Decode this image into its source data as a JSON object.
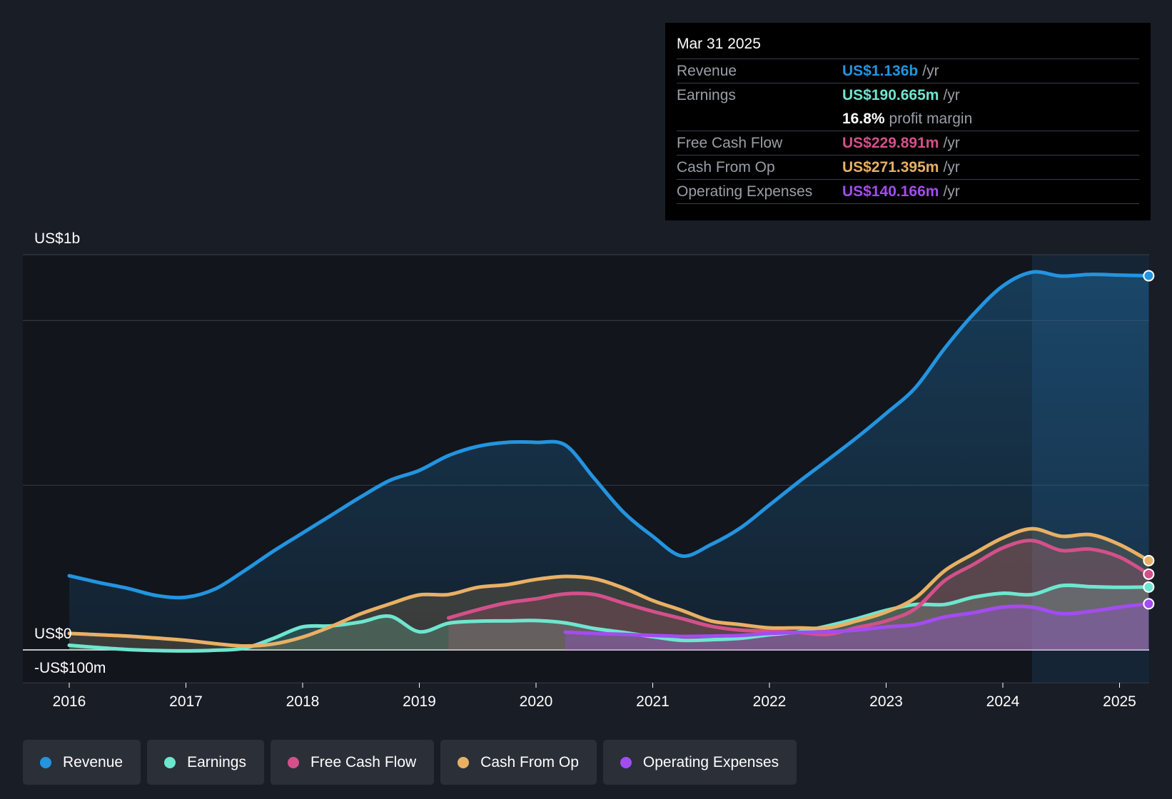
{
  "tooltip": {
    "date": "Mar 31 2025",
    "rows": {
      "revenue": {
        "label": "Revenue",
        "value": "US$1.136b",
        "unit": "/yr",
        "color": "#2394e0"
      },
      "earnings": {
        "label": "Earnings",
        "value": "US$190.665m",
        "unit": "/yr",
        "color": "#6ee6cf"
      },
      "margin": {
        "value": "16.8%",
        "unit": "profit margin"
      },
      "fcf": {
        "label": "Free Cash Flow",
        "value": "US$229.891m",
        "unit": "/yr",
        "color": "#d4508a"
      },
      "cfo": {
        "label": "Cash From Op",
        "value": "US$271.395m",
        "unit": "/yr",
        "color": "#e9b064"
      },
      "opex": {
        "label": "Operating Expenses",
        "value": "US$140.166m",
        "unit": "/yr",
        "color": "#a34cf0"
      }
    }
  },
  "legend": [
    {
      "label": "Revenue",
      "color": "#2394e0"
    },
    {
      "label": "Earnings",
      "color": "#6ee6cf"
    },
    {
      "label": "Free Cash Flow",
      "color": "#d4508a"
    },
    {
      "label": "Cash From Op",
      "color": "#e9b064"
    },
    {
      "label": "Operating Expenses",
      "color": "#a34cf0"
    }
  ],
  "chart_data": {
    "type": "area",
    "title": "",
    "xlabel": "",
    "ylabel": "",
    "ylim": [
      -100,
      1200
    ],
    "xlim": [
      2015.6,
      2025.25
    ],
    "y_tick_labels": [
      {
        "value": 1200,
        "label": "US$1b"
      },
      {
        "value": 0,
        "label": "US$0"
      },
      {
        "value": -100,
        "label": "-US$100m"
      }
    ],
    "gridlines": [
      1200,
      1000,
      500,
      0,
      -100
    ],
    "x_ticks": [
      2016,
      2017,
      2018,
      2019,
      2020,
      2021,
      2022,
      2023,
      2024,
      2025
    ],
    "x_tick_labels": [
      "2016",
      "2017",
      "2018",
      "2019",
      "2020",
      "2021",
      "2022",
      "2023",
      "2024",
      "2025"
    ],
    "highlight_from": 2024.25,
    "series": [
      {
        "name": "Revenue",
        "color": "#2394e0",
        "fill": true,
        "points": [
          [
            2016.0,
            225
          ],
          [
            2016.25,
            205
          ],
          [
            2016.5,
            187
          ],
          [
            2016.75,
            165
          ],
          [
            2017.0,
            160
          ],
          [
            2017.25,
            185
          ],
          [
            2017.5,
            240
          ],
          [
            2017.75,
            300
          ],
          [
            2018.0,
            355
          ],
          [
            2018.25,
            410
          ],
          [
            2018.5,
            465
          ],
          [
            2018.75,
            515
          ],
          [
            2019.0,
            545
          ],
          [
            2019.25,
            590
          ],
          [
            2019.5,
            618
          ],
          [
            2019.75,
            630
          ],
          [
            2020.0,
            630
          ],
          [
            2020.25,
            622
          ],
          [
            2020.5,
            520
          ],
          [
            2020.75,
            418
          ],
          [
            2021.0,
            345
          ],
          [
            2021.25,
            285
          ],
          [
            2021.5,
            320
          ],
          [
            2021.75,
            370
          ],
          [
            2022.0,
            440
          ],
          [
            2022.25,
            510
          ],
          [
            2022.5,
            577
          ],
          [
            2022.75,
            645
          ],
          [
            2023.0,
            718
          ],
          [
            2023.25,
            796
          ],
          [
            2023.5,
            915
          ],
          [
            2023.75,
            1020
          ],
          [
            2024.0,
            1105
          ],
          [
            2024.25,
            1147
          ],
          [
            2024.5,
            1135
          ],
          [
            2024.75,
            1140
          ],
          [
            2025.0,
            1138
          ],
          [
            2025.25,
            1136
          ]
        ]
      },
      {
        "name": "Earnings",
        "color": "#6ee6cf",
        "fill": true,
        "points": [
          [
            2016.0,
            14
          ],
          [
            2016.25,
            7
          ],
          [
            2016.5,
            1
          ],
          [
            2016.75,
            -2
          ],
          [
            2017.0,
            -3
          ],
          [
            2017.25,
            -1
          ],
          [
            2017.5,
            5
          ],
          [
            2017.75,
            35
          ],
          [
            2018.0,
            70
          ],
          [
            2018.25,
            73
          ],
          [
            2018.5,
            85
          ],
          [
            2018.75,
            102
          ],
          [
            2019.0,
            55
          ],
          [
            2019.25,
            81
          ],
          [
            2019.5,
            87
          ],
          [
            2019.75,
            88
          ],
          [
            2020.0,
            89
          ],
          [
            2020.25,
            82
          ],
          [
            2020.5,
            65
          ],
          [
            2020.75,
            53
          ],
          [
            2021.0,
            40
          ],
          [
            2021.25,
            29
          ],
          [
            2021.5,
            31
          ],
          [
            2021.75,
            35
          ],
          [
            2022.0,
            46
          ],
          [
            2022.25,
            55
          ],
          [
            2022.5,
            73
          ],
          [
            2022.75,
            95
          ],
          [
            2023.0,
            120
          ],
          [
            2023.25,
            138
          ],
          [
            2023.5,
            138
          ],
          [
            2023.75,
            160
          ],
          [
            2024.0,
            172
          ],
          [
            2024.25,
            168
          ],
          [
            2024.5,
            195
          ],
          [
            2024.75,
            192
          ],
          [
            2025.0,
            190
          ],
          [
            2025.25,
            191
          ]
        ]
      },
      {
        "name": "Free Cash Flow",
        "color": "#d4508a",
        "fill": true,
        "points": [
          [
            2019.25,
            97
          ],
          [
            2019.5,
            122
          ],
          [
            2019.75,
            143
          ],
          [
            2020.0,
            155
          ],
          [
            2020.25,
            170
          ],
          [
            2020.5,
            168
          ],
          [
            2020.75,
            142
          ],
          [
            2021.0,
            117
          ],
          [
            2021.25,
            95
          ],
          [
            2021.5,
            72
          ],
          [
            2021.75,
            60
          ],
          [
            2022.0,
            57
          ],
          [
            2022.25,
            53
          ],
          [
            2022.5,
            47
          ],
          [
            2022.75,
            68
          ],
          [
            2023.0,
            88
          ],
          [
            2023.25,
            125
          ],
          [
            2023.5,
            210
          ],
          [
            2023.75,
            260
          ],
          [
            2024.0,
            310
          ],
          [
            2024.25,
            332
          ],
          [
            2024.5,
            302
          ],
          [
            2024.75,
            306
          ],
          [
            2025.0,
            282
          ],
          [
            2025.25,
            230
          ]
        ]
      },
      {
        "name": "Cash From Op",
        "color": "#e9b064",
        "fill": true,
        "points": [
          [
            2016.0,
            50
          ],
          [
            2016.25,
            46
          ],
          [
            2016.5,
            42
          ],
          [
            2016.75,
            36
          ],
          [
            2017.0,
            29
          ],
          [
            2017.25,
            19
          ],
          [
            2017.5,
            12
          ],
          [
            2017.75,
            18
          ],
          [
            2018.0,
            39
          ],
          [
            2018.25,
            72
          ],
          [
            2018.5,
            110
          ],
          [
            2018.75,
            140
          ],
          [
            2019.0,
            167
          ],
          [
            2019.25,
            168
          ],
          [
            2019.5,
            190
          ],
          [
            2019.75,
            198
          ],
          [
            2020.0,
            214
          ],
          [
            2020.25,
            223
          ],
          [
            2020.5,
            216
          ],
          [
            2020.75,
            188
          ],
          [
            2021.0,
            150
          ],
          [
            2021.25,
            120
          ],
          [
            2021.5,
            88
          ],
          [
            2021.75,
            77
          ],
          [
            2022.0,
            67
          ],
          [
            2022.25,
            67
          ],
          [
            2022.5,
            67
          ],
          [
            2022.75,
            88
          ],
          [
            2023.0,
            115
          ],
          [
            2023.25,
            158
          ],
          [
            2023.5,
            240
          ],
          [
            2023.75,
            292
          ],
          [
            2024.0,
            340
          ],
          [
            2024.25,
            368
          ],
          [
            2024.5,
            345
          ],
          [
            2024.75,
            350
          ],
          [
            2025.0,
            320
          ],
          [
            2025.25,
            271
          ]
        ]
      },
      {
        "name": "Operating Expenses",
        "color": "#a34cf0",
        "fill": true,
        "points": [
          [
            2020.25,
            54
          ],
          [
            2020.5,
            50
          ],
          [
            2020.75,
            47
          ],
          [
            2021.0,
            44
          ],
          [
            2021.25,
            41
          ],
          [
            2021.5,
            42
          ],
          [
            2021.75,
            44
          ],
          [
            2022.0,
            50
          ],
          [
            2022.25,
            53
          ],
          [
            2022.5,
            55
          ],
          [
            2022.75,
            60
          ],
          [
            2023.0,
            70
          ],
          [
            2023.25,
            77
          ],
          [
            2023.5,
            100
          ],
          [
            2023.75,
            113
          ],
          [
            2024.0,
            130
          ],
          [
            2024.25,
            130
          ],
          [
            2024.5,
            110
          ],
          [
            2024.75,
            117
          ],
          [
            2025.0,
            130
          ],
          [
            2025.25,
            140
          ]
        ]
      }
    ]
  }
}
